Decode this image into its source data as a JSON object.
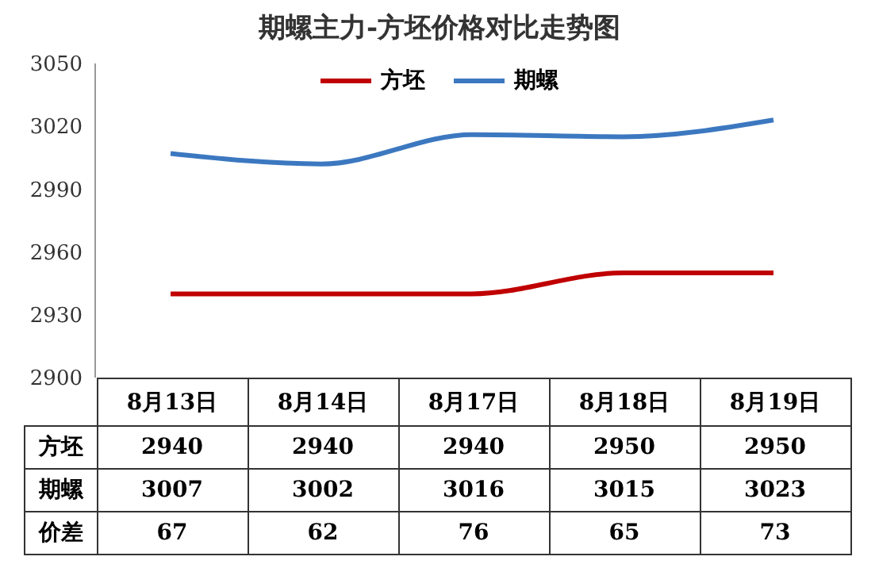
{
  "chart_data": {
    "type": "line",
    "title": "期螺主力-方坯价格对比走势图",
    "categories": [
      "8月13日",
      "8月14日",
      "8月17日",
      "8月18日",
      "8月19日"
    ],
    "series": [
      {
        "name": "方坯",
        "color": "#c00000",
        "values": [
          2940,
          2940,
          2940,
          2950,
          2950
        ]
      },
      {
        "name": "期螺",
        "color": "#3c78c0",
        "values": [
          3007,
          3002,
          3016,
          3015,
          3023
        ]
      }
    ],
    "annotations": [
      "价差",
      "67",
      "62",
      "76",
      "65",
      "73"
    ],
    "ylim": [
      2900,
      3050
    ],
    "yticks": [
      2900,
      2930,
      2960,
      2990,
      3020,
      3050
    ],
    "legend": "top",
    "marker": "none",
    "line_style": "solid",
    "data_labels": true
  }
}
